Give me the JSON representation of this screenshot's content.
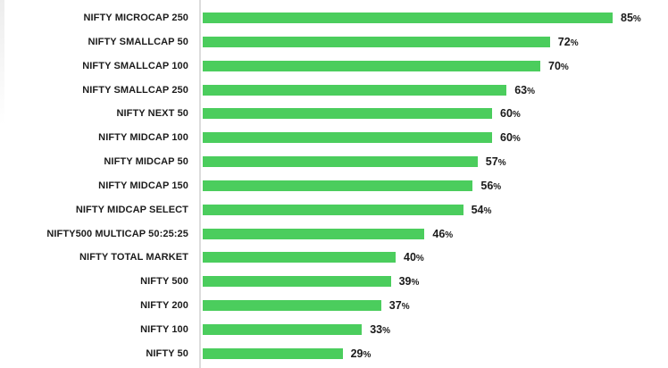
{
  "chart_data": {
    "type": "bar",
    "orientation": "horizontal",
    "title": "",
    "xlabel": "",
    "ylabel": "",
    "categories": [
      "NIFTY MICROCAP 250",
      "NIFTY SMALLCAP 50",
      "NIFTY SMALLCAP 100",
      "NIFTY SMALLCAP 250",
      "NIFTY NEXT 50",
      "NIFTY MIDCAP 100",
      "NIFTY MIDCAP 50",
      "NIFTY MIDCAP 150",
      "NIFTY MIDCAP SELECT",
      "NIFTY500 MULTICAP 50:25:25",
      "NIFTY TOTAL MARKET",
      "NIFTY 500",
      "NIFTY 200",
      "NIFTY 100",
      "NIFTY 50"
    ],
    "values": [
      85,
      72,
      70,
      63,
      60,
      60,
      57,
      56,
      54,
      46,
      40,
      39,
      37,
      33,
      29
    ],
    "value_suffix": "%",
    "xlim": [
      0,
      100
    ],
    "grid": false,
    "legend": "none",
    "bar_color": "#4bcd5d",
    "axis_line_color": "#dcdcdc",
    "label_color": "#1c1c1c"
  }
}
